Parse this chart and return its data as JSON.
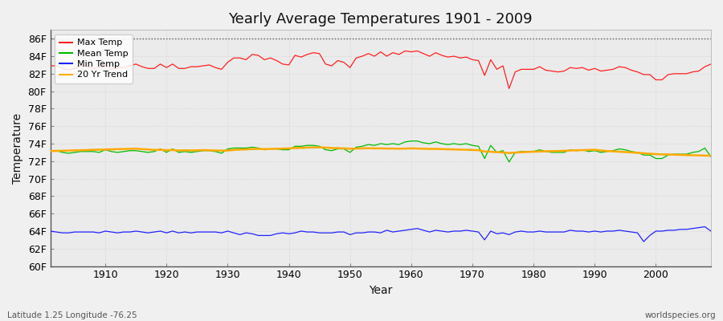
{
  "title": "Yearly Average Temperatures 1901 - 2009",
  "xlabel": "Year",
  "ylabel": "Temperature",
  "bottom_left": "Latitude 1.25 Longitude -76.25",
  "bottom_right": "worldspecies.org",
  "ylim": [
    60,
    87
  ],
  "yticks": [
    60,
    62,
    64,
    66,
    68,
    70,
    72,
    74,
    76,
    78,
    80,
    82,
    84,
    86
  ],
  "ytick_labels": [
    "60F",
    "62F",
    "64F",
    "66F",
    "68F",
    "70F",
    "72F",
    "74F",
    "76F",
    "78F",
    "80F",
    "82F",
    "84F",
    "86F"
  ],
  "xlim": [
    1901,
    2009
  ],
  "xticks": [
    1910,
    1920,
    1930,
    1940,
    1950,
    1960,
    1970,
    1980,
    1990,
    2000
  ],
  "hline_y": 86,
  "hline_color": "#555555",
  "fig_bg_color": "#f0f0f0",
  "plot_bg_color": "#ebebeb",
  "grid_color": "#cccccc",
  "max_temp_color": "#ff2020",
  "mean_temp_color": "#00bb00",
  "min_temp_color": "#2222ff",
  "trend_color": "#ffaa00",
  "legend_labels": [
    "Max Temp",
    "Mean Temp",
    "Min Temp",
    "20 Yr Trend"
  ],
  "years": [
    1901,
    1902,
    1903,
    1904,
    1905,
    1906,
    1907,
    1908,
    1909,
    1910,
    1911,
    1912,
    1913,
    1914,
    1915,
    1916,
    1917,
    1918,
    1919,
    1920,
    1921,
    1922,
    1923,
    1924,
    1925,
    1926,
    1927,
    1928,
    1929,
    1930,
    1931,
    1932,
    1933,
    1934,
    1935,
    1936,
    1937,
    1938,
    1939,
    1940,
    1941,
    1942,
    1943,
    1944,
    1945,
    1946,
    1947,
    1948,
    1949,
    1950,
    1951,
    1952,
    1953,
    1954,
    1955,
    1956,
    1957,
    1958,
    1959,
    1960,
    1961,
    1962,
    1963,
    1964,
    1965,
    1966,
    1967,
    1968,
    1969,
    1970,
    1971,
    1972,
    1973,
    1974,
    1975,
    1976,
    1977,
    1978,
    1979,
    1980,
    1981,
    1982,
    1983,
    1984,
    1985,
    1986,
    1987,
    1988,
    1989,
    1990,
    1991,
    1992,
    1993,
    1994,
    1995,
    1996,
    1997,
    1998,
    1999,
    2000,
    2001,
    2002,
    2003,
    2004,
    2005,
    2006,
    2007,
    2008,
    2009
  ],
  "max_temp": [
    82.9,
    82.9,
    82.6,
    82.4,
    82.6,
    82.9,
    82.8,
    82.6,
    82.7,
    83.0,
    82.5,
    82.7,
    82.7,
    82.9,
    83.1,
    82.8,
    82.6,
    82.6,
    83.1,
    82.7,
    83.1,
    82.6,
    82.6,
    82.8,
    82.8,
    82.9,
    83.0,
    82.7,
    82.5,
    83.3,
    83.8,
    83.8,
    83.6,
    84.2,
    84.1,
    83.6,
    83.8,
    83.5,
    83.1,
    83.0,
    84.1,
    83.9,
    84.2,
    84.4,
    84.3,
    83.1,
    82.9,
    83.5,
    83.3,
    82.7,
    83.8,
    84.0,
    84.3,
    84.0,
    84.5,
    84.0,
    84.4,
    84.2,
    84.6,
    84.5,
    84.6,
    84.3,
    84.0,
    84.4,
    84.1,
    83.9,
    84.0,
    83.8,
    83.9,
    83.6,
    83.5,
    81.8,
    83.6,
    82.5,
    82.9,
    80.3,
    82.2,
    82.5,
    82.5,
    82.5,
    82.8,
    82.4,
    82.3,
    82.2,
    82.3,
    82.7,
    82.6,
    82.7,
    82.4,
    82.6,
    82.3,
    82.4,
    82.5,
    82.8,
    82.7,
    82.4,
    82.2,
    81.9,
    81.9,
    81.3,
    81.3,
    81.9,
    82.0,
    82.0,
    82.0,
    82.2,
    82.3,
    82.8,
    83.1
  ],
  "mean_temp": [
    73.2,
    73.2,
    73.0,
    72.9,
    73.0,
    73.1,
    73.1,
    73.1,
    73.0,
    73.3,
    73.1,
    73.0,
    73.1,
    73.2,
    73.2,
    73.1,
    73.0,
    73.1,
    73.4,
    73.0,
    73.4,
    73.0,
    73.1,
    73.0,
    73.1,
    73.2,
    73.2,
    73.1,
    72.9,
    73.4,
    73.5,
    73.5,
    73.5,
    73.6,
    73.5,
    73.3,
    73.4,
    73.4,
    73.3,
    73.3,
    73.7,
    73.7,
    73.8,
    73.8,
    73.7,
    73.3,
    73.2,
    73.4,
    73.4,
    73.0,
    73.6,
    73.7,
    73.9,
    73.8,
    74.0,
    73.9,
    74.0,
    73.9,
    74.2,
    74.3,
    74.3,
    74.1,
    74.0,
    74.2,
    74.0,
    73.9,
    74.0,
    73.9,
    74.0,
    73.8,
    73.7,
    72.3,
    73.8,
    73.0,
    73.2,
    71.9,
    73.0,
    73.1,
    73.1,
    73.1,
    73.3,
    73.1,
    73.0,
    73.0,
    73.0,
    73.3,
    73.2,
    73.3,
    73.1,
    73.2,
    73.0,
    73.1,
    73.2,
    73.4,
    73.3,
    73.1,
    73.0,
    72.7,
    72.7,
    72.3,
    72.3,
    72.7,
    72.8,
    72.8,
    72.8,
    73.0,
    73.1,
    73.5,
    72.5
  ],
  "min_temp": [
    64.0,
    63.9,
    63.8,
    63.8,
    63.9,
    63.9,
    63.9,
    63.9,
    63.8,
    64.0,
    63.9,
    63.8,
    63.9,
    63.9,
    64.0,
    63.9,
    63.8,
    63.9,
    64.0,
    63.8,
    64.0,
    63.8,
    63.9,
    63.8,
    63.9,
    63.9,
    63.9,
    63.9,
    63.8,
    64.0,
    63.8,
    63.6,
    63.8,
    63.7,
    63.5,
    63.5,
    63.5,
    63.7,
    63.8,
    63.7,
    63.8,
    64.0,
    63.9,
    63.9,
    63.8,
    63.8,
    63.8,
    63.9,
    63.9,
    63.6,
    63.8,
    63.8,
    63.9,
    63.9,
    63.8,
    64.1,
    63.9,
    64.0,
    64.1,
    64.2,
    64.3,
    64.1,
    63.9,
    64.1,
    64.0,
    63.9,
    64.0,
    64.0,
    64.1,
    64.0,
    63.9,
    63.0,
    64.0,
    63.7,
    63.8,
    63.6,
    63.9,
    64.0,
    63.9,
    63.9,
    64.0,
    63.9,
    63.9,
    63.9,
    63.9,
    64.1,
    64.0,
    64.0,
    63.9,
    64.0,
    63.9,
    64.0,
    64.0,
    64.1,
    64.0,
    63.9,
    63.8,
    62.8,
    63.5,
    64.0,
    64.0,
    64.1,
    64.1,
    64.2,
    64.2,
    64.3,
    64.4,
    64.5,
    64.0
  ],
  "trend": [
    73.15,
    73.17,
    73.19,
    73.21,
    73.23,
    73.25,
    73.27,
    73.29,
    73.31,
    73.33,
    73.35,
    73.37,
    73.39,
    73.41,
    73.43,
    73.38,
    73.33,
    73.28,
    73.3,
    73.25,
    73.27,
    73.22,
    73.24,
    73.22,
    73.24,
    73.26,
    73.24,
    73.22,
    73.2,
    73.22,
    73.28,
    73.32,
    73.35,
    73.38,
    73.4,
    73.38,
    73.4,
    73.42,
    73.44,
    73.46,
    73.5,
    73.52,
    73.55,
    73.57,
    73.58,
    73.55,
    73.5,
    73.48,
    73.46,
    73.42,
    73.44,
    73.46,
    73.48,
    73.46,
    73.46,
    73.44,
    73.44,
    73.42,
    73.44,
    73.46,
    73.44,
    73.42,
    73.4,
    73.4,
    73.38,
    73.36,
    73.34,
    73.32,
    73.3,
    73.28,
    73.25,
    73.1,
    73.08,
    73.02,
    73.0,
    72.92,
    72.98,
    73.02,
    73.05,
    73.08,
    73.1,
    73.12,
    73.14,
    73.16,
    73.18,
    73.22,
    73.24,
    73.26,
    73.28,
    73.3,
    73.22,
    73.16,
    73.12,
    73.08,
    73.04,
    73.0,
    72.96,
    72.9,
    72.85,
    72.8,
    72.78,
    72.76,
    72.74,
    72.72,
    72.7,
    72.68,
    72.66,
    72.64,
    72.62
  ]
}
